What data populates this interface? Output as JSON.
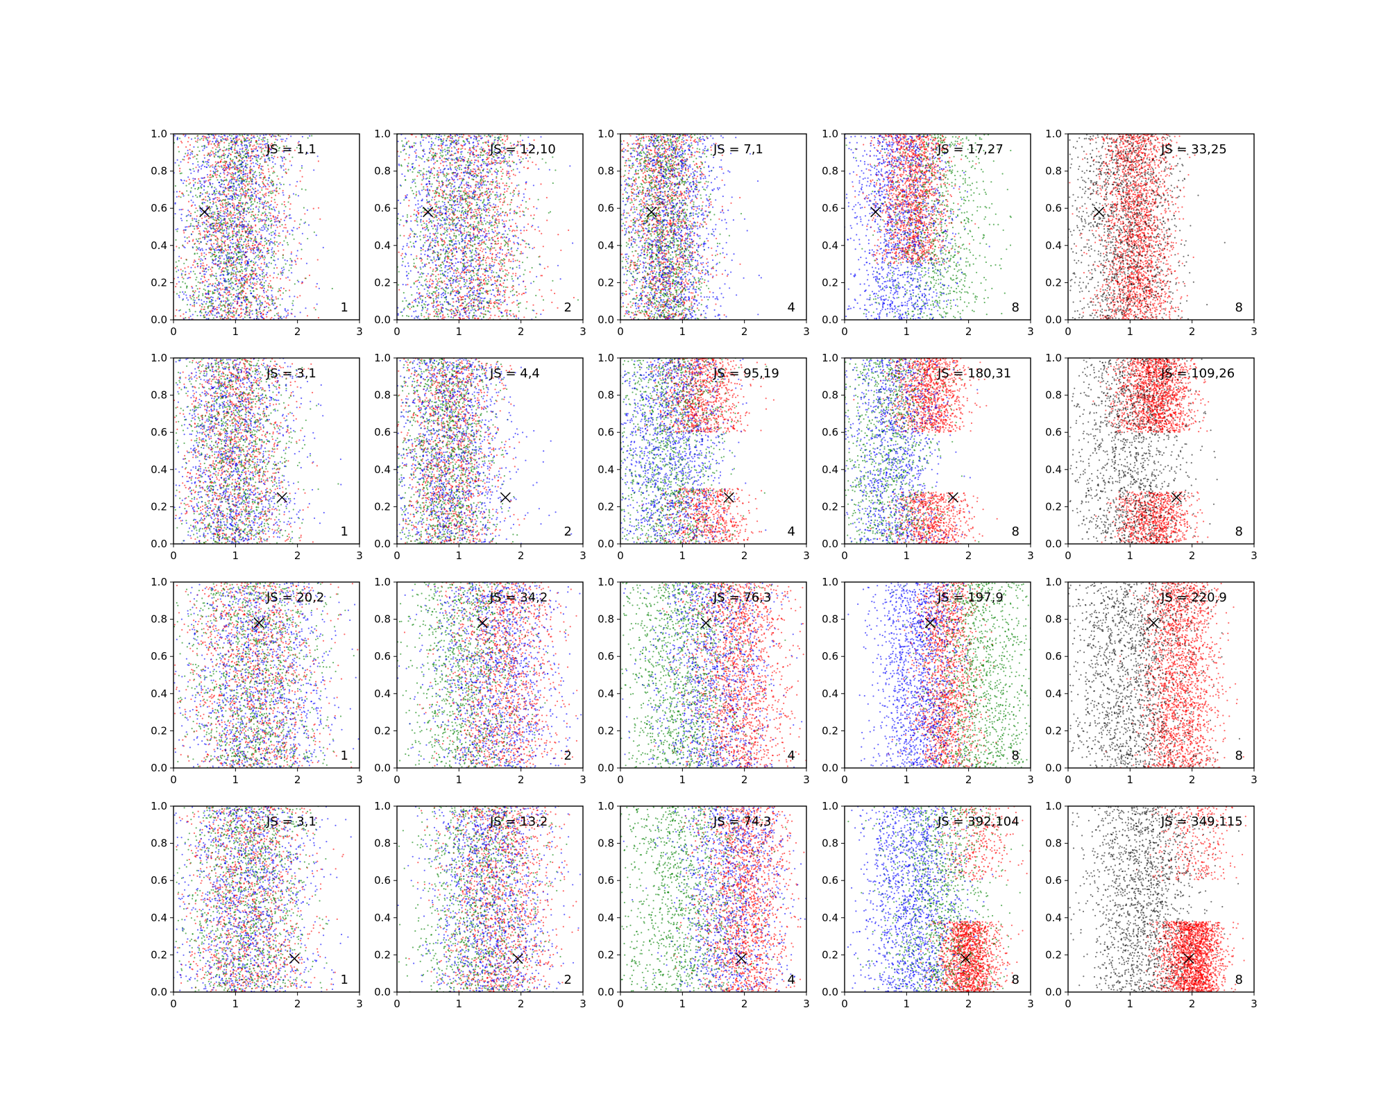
{
  "chart_data": {
    "type": "scatter",
    "layout": {
      "rows": 4,
      "cols": 5
    },
    "xlim": [
      0,
      3
    ],
    "ylim": [
      0,
      1
    ],
    "xticks": [
      "0",
      "1",
      "2",
      "3"
    ],
    "yticks": [
      "0.0",
      "0.2",
      "0.4",
      "0.6",
      "0.8",
      "1.0"
    ],
    "grid": false,
    "colors": {
      "red": "#ff0000",
      "green": "#008000",
      "blue": "#0000ff",
      "black": "#000000"
    },
    "rows": [
      {
        "marker": {
          "x": 0.5,
          "y": 0.58
        },
        "panels": [
          {
            "js_label": "JS = 1,1",
            "corner_label": "1",
            "point_clouds": [
              {
                "color": "red",
                "count": 1200,
                "x_mean": 1.0,
                "x_sd": 0.45,
                "y_min": 0,
                "y_max": 1
              },
              {
                "color": "green",
                "count": 1200,
                "x_mean": 1.0,
                "x_sd": 0.45,
                "y_min": 0,
                "y_max": 1
              },
              {
                "color": "blue",
                "count": 1200,
                "x_mean": 1.0,
                "x_sd": 0.5,
                "y_min": 0,
                "y_max": 1
              }
            ]
          },
          {
            "js_label": "JS = 12,10",
            "corner_label": "2",
            "point_clouds": [
              {
                "color": "red",
                "count": 1200,
                "x_mean": 1.2,
                "x_sd": 0.5,
                "y_min": 0,
                "y_max": 1
              },
              {
                "color": "green",
                "count": 1200,
                "x_mean": 1.0,
                "x_sd": 0.55,
                "y_min": 0,
                "y_max": 1
              },
              {
                "color": "blue",
                "count": 1200,
                "x_mean": 1.0,
                "x_sd": 0.55,
                "y_min": 0,
                "y_max": 1
              }
            ]
          },
          {
            "js_label": "JS = 7,1",
            "corner_label": "4",
            "point_clouds": [
              {
                "color": "red",
                "count": 1300,
                "x_mean": 0.7,
                "x_sd": 0.35,
                "y_min": 0,
                "y_max": 1
              },
              {
                "color": "green",
                "count": 1300,
                "x_mean": 0.7,
                "x_sd": 0.35,
                "y_min": 0,
                "y_max": 1
              },
              {
                "color": "blue",
                "count": 1300,
                "x_mean": 0.8,
                "x_sd": 0.45,
                "y_min": 0,
                "y_max": 1
              }
            ]
          },
          {
            "js_label": "JS = 17,27",
            "corner_label": "8",
            "point_clouds": [
              {
                "color": "red",
                "count": 1500,
                "x_mean": 1.1,
                "x_sd": 0.3,
                "y_min": 0.3,
                "y_max": 1
              },
              {
                "color": "green",
                "count": 900,
                "x_mean": 1.5,
                "x_sd": 0.45,
                "y_min": 0,
                "y_max": 1
              },
              {
                "color": "blue",
                "count": 1300,
                "x_mean": 0.9,
                "x_sd": 0.4,
                "y_min": 0,
                "y_max": 1
              }
            ]
          },
          {
            "js_label": "JS = 33,25",
            "corner_label": "8",
            "point_clouds": [
              {
                "color": "red",
                "count": 2200,
                "x_mean": 1.1,
                "x_sd": 0.3,
                "y_min": 0,
                "y_max": 1
              },
              {
                "color": "black",
                "count": 1400,
                "x_mean": 0.9,
                "x_sd": 0.45,
                "y_min": 0,
                "y_max": 1
              }
            ]
          }
        ]
      },
      {
        "marker": {
          "x": 1.75,
          "y": 0.25
        },
        "panels": [
          {
            "js_label": "JS = 3,1",
            "corner_label": "1",
            "point_clouds": [
              {
                "color": "red",
                "count": 1200,
                "x_mean": 1.0,
                "x_sd": 0.45,
                "y_min": 0,
                "y_max": 1
              },
              {
                "color": "green",
                "count": 1200,
                "x_mean": 1.0,
                "x_sd": 0.45,
                "y_min": 0,
                "y_max": 1
              },
              {
                "color": "blue",
                "count": 1200,
                "x_mean": 1.0,
                "x_sd": 0.5,
                "y_min": 0,
                "y_max": 1
              }
            ]
          },
          {
            "js_label": "JS = 4,4",
            "corner_label": "2",
            "point_clouds": [
              {
                "color": "red",
                "count": 1200,
                "x_mean": 0.85,
                "x_sd": 0.4,
                "y_min": 0,
                "y_max": 1
              },
              {
                "color": "green",
                "count": 1200,
                "x_mean": 0.8,
                "x_sd": 0.4,
                "y_min": 0,
                "y_max": 1
              },
              {
                "color": "blue",
                "count": 1200,
                "x_mean": 0.9,
                "x_sd": 0.5,
                "y_min": 0,
                "y_max": 1
              }
            ]
          },
          {
            "js_label": "JS = 95,19",
            "corner_label": "4",
            "point_clouds": [
              {
                "color": "red",
                "count": 900,
                "x_mean": 1.3,
                "x_sd": 0.35,
                "y_min": 0.6,
                "y_max": 1
              },
              {
                "color": "red",
                "count": 600,
                "x_mean": 1.4,
                "x_sd": 0.35,
                "y_min": 0,
                "y_max": 0.3
              },
              {
                "color": "green",
                "count": 1200,
                "x_mean": 0.8,
                "x_sd": 0.45,
                "y_min": 0,
                "y_max": 1
              },
              {
                "color": "blue",
                "count": 1300,
                "x_mean": 0.8,
                "x_sd": 0.45,
                "y_min": 0,
                "y_max": 1
              }
            ]
          },
          {
            "js_label": "JS = 180,31",
            "corner_label": "8",
            "point_clouds": [
              {
                "color": "red",
                "count": 1100,
                "x_mean": 1.35,
                "x_sd": 0.3,
                "y_min": 0.6,
                "y_max": 1
              },
              {
                "color": "red",
                "count": 700,
                "x_mean": 1.4,
                "x_sd": 0.3,
                "y_min": 0,
                "y_max": 0.28
              },
              {
                "color": "green",
                "count": 1000,
                "x_mean": 0.7,
                "x_sd": 0.4,
                "y_min": 0,
                "y_max": 1
              },
              {
                "color": "blue",
                "count": 1100,
                "x_mean": 0.8,
                "x_sd": 0.4,
                "y_min": 0,
                "y_max": 1
              }
            ]
          },
          {
            "js_label": "JS = 109,26",
            "corner_label": "8",
            "point_clouds": [
              {
                "color": "red",
                "count": 1600,
                "x_mean": 1.4,
                "x_sd": 0.3,
                "y_min": 0.6,
                "y_max": 1
              },
              {
                "color": "red",
                "count": 900,
                "x_mean": 1.4,
                "x_sd": 0.3,
                "y_min": 0,
                "y_max": 0.28
              },
              {
                "color": "black",
                "count": 1400,
                "x_mean": 1.0,
                "x_sd": 0.45,
                "y_min": 0,
                "y_max": 1
              }
            ]
          }
        ]
      },
      {
        "marker": {
          "x": 1.38,
          "y": 0.78
        },
        "panels": [
          {
            "js_label": "JS = 20,2",
            "corner_label": "1",
            "point_clouds": [
              {
                "color": "red",
                "count": 1200,
                "x_mean": 1.3,
                "x_sd": 0.55,
                "y_min": 0,
                "y_max": 1
              },
              {
                "color": "green",
                "count": 1200,
                "x_mean": 1.3,
                "x_sd": 0.55,
                "y_min": 0,
                "y_max": 1
              },
              {
                "color": "blue",
                "count": 1200,
                "x_mean": 1.4,
                "x_sd": 0.6,
                "y_min": 0,
                "y_max": 1
              }
            ]
          },
          {
            "js_label": "JS = 34,2",
            "corner_label": "2",
            "point_clouds": [
              {
                "color": "red",
                "count": 1300,
                "x_mean": 1.7,
                "x_sd": 0.45,
                "y_min": 0,
                "y_max": 1
              },
              {
                "color": "green",
                "count": 1100,
                "x_mean": 1.1,
                "x_sd": 0.5,
                "y_min": 0,
                "y_max": 1
              },
              {
                "color": "blue",
                "count": 1200,
                "x_mean": 1.6,
                "x_sd": 0.55,
                "y_min": 0,
                "y_max": 1
              }
            ]
          },
          {
            "js_label": "JS = 76,3",
            "corner_label": "4",
            "point_clouds": [
              {
                "color": "red",
                "count": 1600,
                "x_mean": 1.9,
                "x_sd": 0.4,
                "y_min": 0,
                "y_max": 1
              },
              {
                "color": "green",
                "count": 1300,
                "x_mean": 1.0,
                "x_sd": 0.5,
                "y_min": 0,
                "y_max": 1
              },
              {
                "color": "blue",
                "count": 1100,
                "x_mean": 1.5,
                "x_sd": 0.5,
                "y_min": 0,
                "y_max": 1
              }
            ]
          },
          {
            "js_label": "JS = 197,9",
            "corner_label": "8",
            "point_clouds": [
              {
                "color": "red",
                "count": 1500,
                "x_mean": 1.65,
                "x_sd": 0.25,
                "y_min": 0,
                "y_max": 1
              },
              {
                "color": "green",
                "count": 1200,
                "x_mean": 2.2,
                "x_sd": 0.45,
                "y_min": 0,
                "y_max": 1
              },
              {
                "color": "blue",
                "count": 1400,
                "x_mean": 1.2,
                "x_sd": 0.35,
                "y_min": 0,
                "y_max": 1
              }
            ]
          },
          {
            "js_label": "JS = 220,9",
            "corner_label": "8",
            "point_clouds": [
              {
                "color": "red",
                "count": 2000,
                "x_mean": 1.8,
                "x_sd": 0.3,
                "y_min": 0,
                "y_max": 1
              },
              {
                "color": "black",
                "count": 1600,
                "x_mean": 1.0,
                "x_sd": 0.5,
                "y_min": 0,
                "y_max": 1
              }
            ]
          }
        ]
      },
      {
        "marker": {
          "x": 1.95,
          "y": 0.18
        },
        "panels": [
          {
            "js_label": "JS = 3,1",
            "corner_label": "1",
            "point_clouds": [
              {
                "color": "red",
                "count": 1200,
                "x_mean": 1.2,
                "x_sd": 0.5,
                "y_min": 0,
                "y_max": 1
              },
              {
                "color": "green",
                "count": 1200,
                "x_mean": 1.2,
                "x_sd": 0.5,
                "y_min": 0,
                "y_max": 1
              },
              {
                "color": "blue",
                "count": 1200,
                "x_mean": 1.2,
                "x_sd": 0.55,
                "y_min": 0,
                "y_max": 1
              }
            ]
          },
          {
            "js_label": "JS = 13,2",
            "corner_label": "2",
            "point_clouds": [
              {
                "color": "red",
                "count": 1300,
                "x_mean": 1.7,
                "x_sd": 0.45,
                "y_min": 0,
                "y_max": 1
              },
              {
                "color": "green",
                "count": 1100,
                "x_mean": 1.3,
                "x_sd": 0.5,
                "y_min": 0,
                "y_max": 1
              },
              {
                "color": "blue",
                "count": 1200,
                "x_mean": 1.5,
                "x_sd": 0.5,
                "y_min": 0,
                "y_max": 1
              }
            ]
          },
          {
            "js_label": "JS = 74,3",
            "corner_label": "4",
            "point_clouds": [
              {
                "color": "red",
                "count": 1600,
                "x_mean": 2.0,
                "x_sd": 0.35,
                "y_min": 0,
                "y_max": 1
              },
              {
                "color": "green",
                "count": 1200,
                "x_mean": 1.0,
                "x_sd": 0.55,
                "y_min": 0,
                "y_max": 1
              },
              {
                "color": "blue",
                "count": 1100,
                "x_mean": 1.8,
                "x_sd": 0.45,
                "y_min": 0,
                "y_max": 1
              }
            ]
          },
          {
            "js_label": "JS = 392,104",
            "corner_label": "8",
            "point_clouds": [
              {
                "color": "red",
                "count": 1500,
                "x_mean": 2.0,
                "x_sd": 0.25,
                "y_min": 0,
                "y_max": 0.38
              },
              {
                "color": "red",
                "count": 300,
                "x_mean": 2.1,
                "x_sd": 0.3,
                "y_min": 0.6,
                "y_max": 1
              },
              {
                "color": "green",
                "count": 1100,
                "x_mean": 1.5,
                "x_sd": 0.45,
                "y_min": 0,
                "y_max": 1
              },
              {
                "color": "blue",
                "count": 1400,
                "x_mean": 1.1,
                "x_sd": 0.4,
                "y_min": 0,
                "y_max": 1
              }
            ]
          },
          {
            "js_label": "JS = 349,115",
            "corner_label": "8",
            "point_clouds": [
              {
                "color": "red",
                "count": 2000,
                "x_mean": 2.0,
                "x_sd": 0.25,
                "y_min": 0,
                "y_max": 0.38
              },
              {
                "color": "red",
                "count": 300,
                "x_mean": 2.1,
                "x_sd": 0.3,
                "y_min": 0.6,
                "y_max": 1
              },
              {
                "color": "black",
                "count": 1600,
                "x_mean": 1.2,
                "x_sd": 0.45,
                "y_min": 0,
                "y_max": 1
              }
            ]
          }
        ]
      }
    ]
  }
}
